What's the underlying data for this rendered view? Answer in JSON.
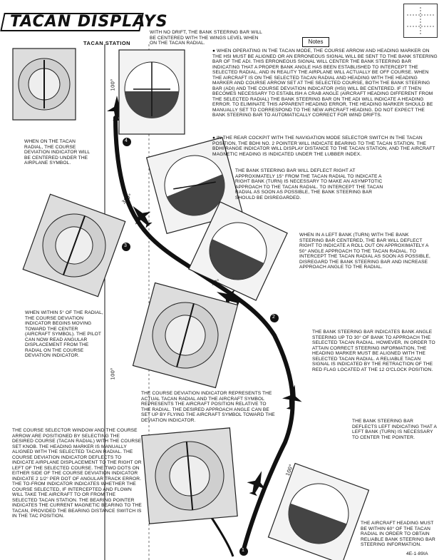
{
  "header": {
    "title": "TACAN DISPLAYS",
    "station_label": "TACAN STATION",
    "notes_label": "Notes"
  },
  "radials": {
    "r100_top": "100°",
    "r350": "350°",
    "r10": "10°",
    "r100_bottom": "100°",
    "r100_mid": "100°"
  },
  "markers": [
    "1",
    "2",
    "3",
    "4"
  ],
  "annotations": {
    "top_center": "WITH NO DRIFT, THE BANK STEERING BAR WILL BE CENTERED WITH THE WINGS LEVEL WHEN ON THE TACAN RADIAL.",
    "notes_1": "● WHEN OPERATING IN THE TACAN MODE, THE COURSE ARROW AND HEADING MARKER ON THE HSI MUST BE ALIGNED OR AN ERRONEOUS SIGNAL WILL BE SENT TO THE BANK STEERING BAR OF THE ADI. THIS ERRONEOUS SIGNAL WILL CENTER THE BANK STEERING BAR INDICATING THAT A PROPER BANK ANGLE HAS BEEN ESTABLISHED TO INTERCEPT THE SELECTED RADIAL, AND IN REALITY THE AIRPLANE WILL ACTUALLY BE OFF COURSE. WHEN THE AIRCRAFT IS ON THE SELECTED TACAN RADIAL AND HEADING WITH THE HEADING MARKER AND COURSE ARROW SET AT THE SELECTED COURSE, BOTH THE BANK STEERING BAR (ADI) AND THE COURSE DEVIATION INDICATOR (HSI) WILL BE CENTERED. IF IT THEN BECOMES NECESSARY TO ESTABLISH A CRAB ANGLE (AIRCRAFT HEADING DIFFERENT FROM THE SELECTED RADIAL) THE BANK STEERING BAR ON THE ADI WILL INDICATE A HEADING ERROR. TO ELIMINATE THIS APPARENT HEADING ERROR, THE HEADING MARKER SHOULD BE MANUALLY SET TO CORRESPOND TO THE NEW AIRCRAFT HEADING. DO NOT EXPECT THE BANK STEERING BAR TO AUTOMATICALLY CORRECT FOR WIND DRIFTS.",
    "notes_2": "● IN THE REAR COCKPIT WITH THE NAVIGATION MODE SELECTOR SWITCH IN THE TACAN POSITION, THE BDHI NO. 2 POINTER WILL INDICATE BEARING TO THE TACAN STATION. THE BDHI RANGE INDICATOR WILL DISPLAY DISTANCE TO THE TACAN STATION, AND THE AIRCRAFT MAGNETIC HEADING IS INDICATED UNDER THE LUBBER INDEX.",
    "left_top": "WHEN ON THE TACAN RADIAL, THE COURSE DEVIATION INDICATOR WILL BE CENTERED UNDER THE AIRPLANE SYMBOL.",
    "right_mid1": "THE BANK STEERING BAR WILL DEFLECT RIGHT AT APPROXIMATELY 15° FROM THE TACAN RADIAL TO INDICATE A RIGHT BANK (TURN) IS NECESSARY TO MAKE AN ASYMPTOTIC APPROACH TO THE TACAN RADIAL. TO INTERCEPT THE TACAN RADIAL AS SOON AS POSSIBLE, THE BANK STEERING BAR SHOULD BE DISREGARDED.",
    "right_mid2": "WHEN IN A LEFT BANK (TURN) WITH THE BANK STEERING BAR CENTERED, THE BAR WILL DEFLECT RIGHT TO INDICATE A ROLL OUT ON APPROXIMATELY A 50° ANGLE APPROACH TO THE TACAN RADIAL. TO INTERCEPT THE TACAN RADIAL AS SOON AS POSSIBLE, DISREGARD THE BANK STEERING BAR AND INCREASE APPROACH ANGLE TO THE RADIAL.",
    "left_mid": "WHEN WITHIN 5° OF THE RADIAL, THE COURSE DEVIATION INDICATOR BEGINS MOVING TOWARD THE CENTER (AIRCRAFT SYMBOL). THE PILOT CAN NOW READ ANGULAR DISPLACEMENT FROM THE RADIAL ON THE COURSE DEVIATION INDICATOR.",
    "right_lower": "THE BANK STEERING BAR INDICATES BANK ANGLE STEERING UP TO 30° OF BANK TO APPROACH THE SELECTED TACAN RADIAL. HOWEVER, IN ORDER TO ATTAIN CORRECT STEERING INFORMATION, THE HEADING MARKER MUST BE ALIGNED WITH THE SELECTED TACAN RADIAL. A RELIABLE TACAN SIGNAL IS INDICATED BY THE RETRACTION OF THE RED FLAG LOCATED AT THE 12 O'CLOCK POSITION.",
    "center_lower": "THE COURSE DEVIATION INDICATOR REPRESENTS THE ACTUAL TACAN RADIAL AND THE AIRCRAFT SYMBOL REPRESENTS THE AIRCRAFT POSITION RELATIVE TO THE RADIAL. THE DESIRED APPROACH ANGLE CAN BE SET UP BY FLYING THE AIRCRAFT SYMBOL TOWARD THE DEVIATION INDICATOR.",
    "right_small": "THE BANK STEERING BAR DEFLECTS LEFT INDICATING THAT A LEFT BANK (TURN) IS NECESSARY TO CENTER THE POINTER.",
    "left_bottom": "THE COURSE SELECTOR WINDOW AND THE COURSE ARROW ARE POSITIONED BY SELECTING THE DESIRED COURSE (TACAN RADIAL) WITH THE COURSE SET KNOB. THE HEADING MARKER IS MANUALLY ALIGNED WITH THE SELECTED TACAN RADIAL. THE COURSE DEVIATION INDICATOR DEFLECTS TO INDICATE AIRPLANE DISPLACEMENT TO THE RIGHT OR LEFT OF THE SELECTED COURSE. THE TWO DOTS ON EITHER SIDE OF THE COURSE DEVIATION INDICATOR INDICATE 2 1/2° PER DOT OF ANGULAR TRACK ERROR. THE TO-FROM INDICATOR INDICATES WHETHER THE COURSE SELECTED, IF INTERCEPTED AND FLOWN WILL TAKE THE AIRCRAFT TO OR FROM THE SELECTED TACAN STATION. THE BEARING POINTER INDICATES THE CURRENT MAGNETIC BEARING TO THE TACAN, PROVIDED THE BEARING DISTANCE SWITCH IS IN THE TAC POSITION.",
    "right_bottom": "THE AIRCRAFT HEADING MUST BE WITHIN 60° OF THE TACAN RADIAL IN ORDER TO OBTAIN RELIABLE BANK STEERING BAR STEERING INFORMATION."
  },
  "figure_code": "4E-1-89IA"
}
